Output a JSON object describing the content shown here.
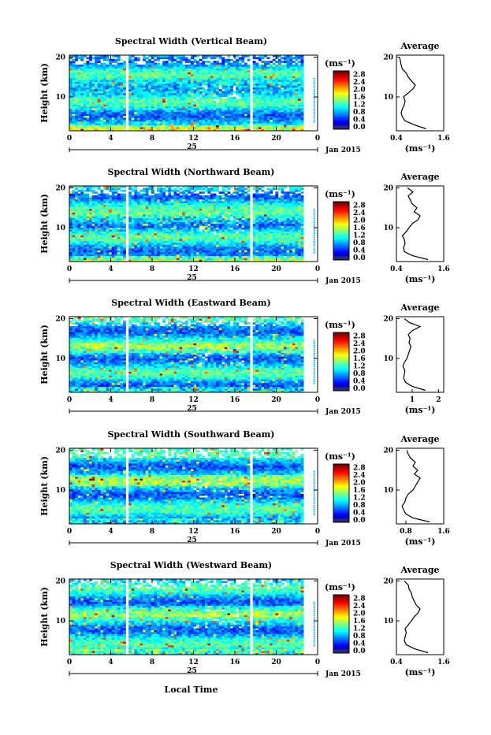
{
  "figure": {
    "ylabel": "Height (km)",
    "xlabel": "Local Time",
    "day_label": "25",
    "date_label": "Jan 2015",
    "colorbar_unit": "(ms⁻¹)",
    "avg_title": "Average",
    "avg_xlabel": "(ms⁻¹)"
  },
  "chart_data": [
    {
      "type": "heatmap",
      "title": "Spectral Width (Vertical Beam)",
      "x_ticks": [
        "0",
        "4",
        "8",
        "12",
        "16",
        "20",
        "0"
      ],
      "y_ticks": [
        "10",
        "20"
      ],
      "xlim": [
        0,
        24
      ],
      "ylim": [
        1.5,
        20.5
      ],
      "colorbar": {
        "ticks": [
          "0.0",
          "0.4",
          "0.8",
          "1.2",
          "1.6",
          "2.0",
          "2.4",
          "2.8"
        ],
        "range": [
          0,
          3.0
        ]
      },
      "gaps_hours": [
        5.6,
        17.6
      ],
      "average_profile": {
        "x_ticks": [
          "0.4",
          "1.6"
        ],
        "xlim": [
          0.4,
          1.6
        ],
        "height_km": [
          2,
          3,
          4,
          5,
          6,
          7,
          8,
          9,
          10,
          11,
          12,
          13,
          14,
          15,
          16,
          17,
          18,
          19,
          20
        ],
        "width_ms": [
          1.15,
          0.85,
          0.62,
          0.55,
          0.52,
          0.55,
          0.6,
          0.62,
          0.58,
          0.7,
          0.82,
          0.88,
          0.78,
          0.7,
          0.65,
          0.55,
          0.52,
          0.5,
          0.48
        ]
      }
    },
    {
      "type": "heatmap",
      "title": "Spectral Width (Northward Beam)",
      "x_ticks": [
        "0",
        "4",
        "8",
        "12",
        "16",
        "20",
        "0"
      ],
      "y_ticks": [
        "10",
        "20"
      ],
      "xlim": [
        0,
        24
      ],
      "ylim": [
        1.5,
        20.5
      ],
      "colorbar": {
        "ticks": [
          "0.0",
          "0.4",
          "0.8",
          "1.2",
          "1.6",
          "2.0",
          "2.4",
          "2.8"
        ],
        "range": [
          0,
          3.0
        ]
      },
      "gaps_hours": [
        5.6,
        17.6
      ],
      "average_profile": {
        "x_ticks": [
          "0.4",
          "1.6"
        ],
        "xlim": [
          0.4,
          1.6
        ],
        "height_km": [
          2,
          3,
          4,
          5,
          6,
          7,
          8,
          9,
          10,
          11,
          12,
          13,
          14,
          15,
          16,
          17,
          18,
          19,
          20
        ],
        "width_ms": [
          1.2,
          0.8,
          0.6,
          0.58,
          0.62,
          0.6,
          0.55,
          0.65,
          0.72,
          0.8,
          0.95,
          1.0,
          0.85,
          0.92,
          0.8,
          0.75,
          0.7,
          0.82,
          0.68
        ]
      }
    },
    {
      "type": "heatmap",
      "title": "Spectral Width (Eastward Beam)",
      "x_ticks": [
        "0",
        "4",
        "8",
        "12",
        "16",
        "20",
        "0"
      ],
      "y_ticks": [
        "10",
        "20"
      ],
      "xlim": [
        0,
        24
      ],
      "ylim": [
        1.5,
        20.5
      ],
      "colorbar": {
        "ticks": [
          "0.0",
          "0.4",
          "0.8",
          "1.2",
          "1.6",
          "2.0",
          "2.4",
          "2.8"
        ],
        "range": [
          0,
          3.0
        ]
      },
      "gaps_hours": [
        5.6,
        17.6
      ],
      "average_profile": {
        "x_ticks": [
          "1",
          "2"
        ],
        "xlim": [
          0.4,
          2.2
        ],
        "height_km": [
          2,
          3,
          4,
          5,
          6,
          7,
          8,
          9,
          10,
          11,
          12,
          13,
          14,
          15,
          16,
          17,
          18,
          19,
          20
        ],
        "width_ms": [
          1.5,
          1.0,
          0.75,
          0.68,
          0.7,
          0.72,
          0.65,
          0.7,
          0.8,
          0.85,
          0.9,
          0.95,
          0.88,
          0.92,
          0.85,
          1.0,
          1.3,
          0.9,
          0.7
        ]
      }
    },
    {
      "type": "heatmap",
      "title": "Spectral Width (Southward Beam)",
      "x_ticks": [
        "0",
        "4",
        "8",
        "12",
        "16",
        "20",
        "0"
      ],
      "y_ticks": [
        "10",
        "20"
      ],
      "xlim": [
        0,
        24
      ],
      "ylim": [
        1.5,
        20.5
      ],
      "colorbar": {
        "ticks": [
          "0.0",
          "0.4",
          "0.8",
          "1.2",
          "1.6",
          "2.0",
          "2.4",
          "2.8"
        ],
        "range": [
          0,
          3.0
        ]
      },
      "gaps_hours": [
        5.6,
        17.6
      ],
      "average_profile": {
        "x_ticks": [
          "0.8",
          "1.6"
        ],
        "xlim": [
          0.6,
          1.6
        ],
        "height_km": [
          2,
          3,
          4,
          5,
          6,
          7,
          8,
          9,
          10,
          11,
          12,
          13,
          14,
          15,
          16,
          17,
          18,
          19,
          20
        ],
        "width_ms": [
          1.3,
          0.95,
          0.8,
          0.75,
          0.72,
          0.78,
          0.8,
          0.85,
          0.95,
          1.0,
          1.05,
          1.1,
          0.98,
          1.05,
          0.95,
          1.0,
          0.9,
          0.85,
          0.82
        ]
      }
    },
    {
      "type": "heatmap",
      "title": "Spectral Width (Westward Beam)",
      "x_ticks": [
        "0",
        "4",
        "8",
        "12",
        "16",
        "20",
        "0"
      ],
      "y_ticks": [
        "10",
        "20"
      ],
      "xlim": [
        0,
        24
      ],
      "ylim": [
        1.5,
        20.5
      ],
      "colorbar": {
        "ticks": [
          "0.0",
          "0.4",
          "0.8",
          "1.2",
          "1.6",
          "2.0",
          "2.4",
          "2.8"
        ],
        "range": [
          0,
          3.0
        ]
      },
      "gaps_hours": [
        5.6,
        17.6
      ],
      "average_profile": {
        "x_ticks": [
          "0.4",
          "1.6"
        ],
        "xlim": [
          0.4,
          1.6
        ],
        "height_km": [
          2,
          3,
          4,
          5,
          6,
          7,
          8,
          9,
          10,
          11,
          12,
          13,
          14,
          15,
          16,
          17,
          18,
          19,
          20
        ],
        "width_ms": [
          1.2,
          0.85,
          0.65,
          0.6,
          0.62,
          0.65,
          0.62,
          0.7,
          0.78,
          0.85,
          0.95,
          1.0,
          0.9,
          0.85,
          0.8,
          0.78,
          0.72,
          0.7,
          0.6
        ]
      }
    }
  ]
}
